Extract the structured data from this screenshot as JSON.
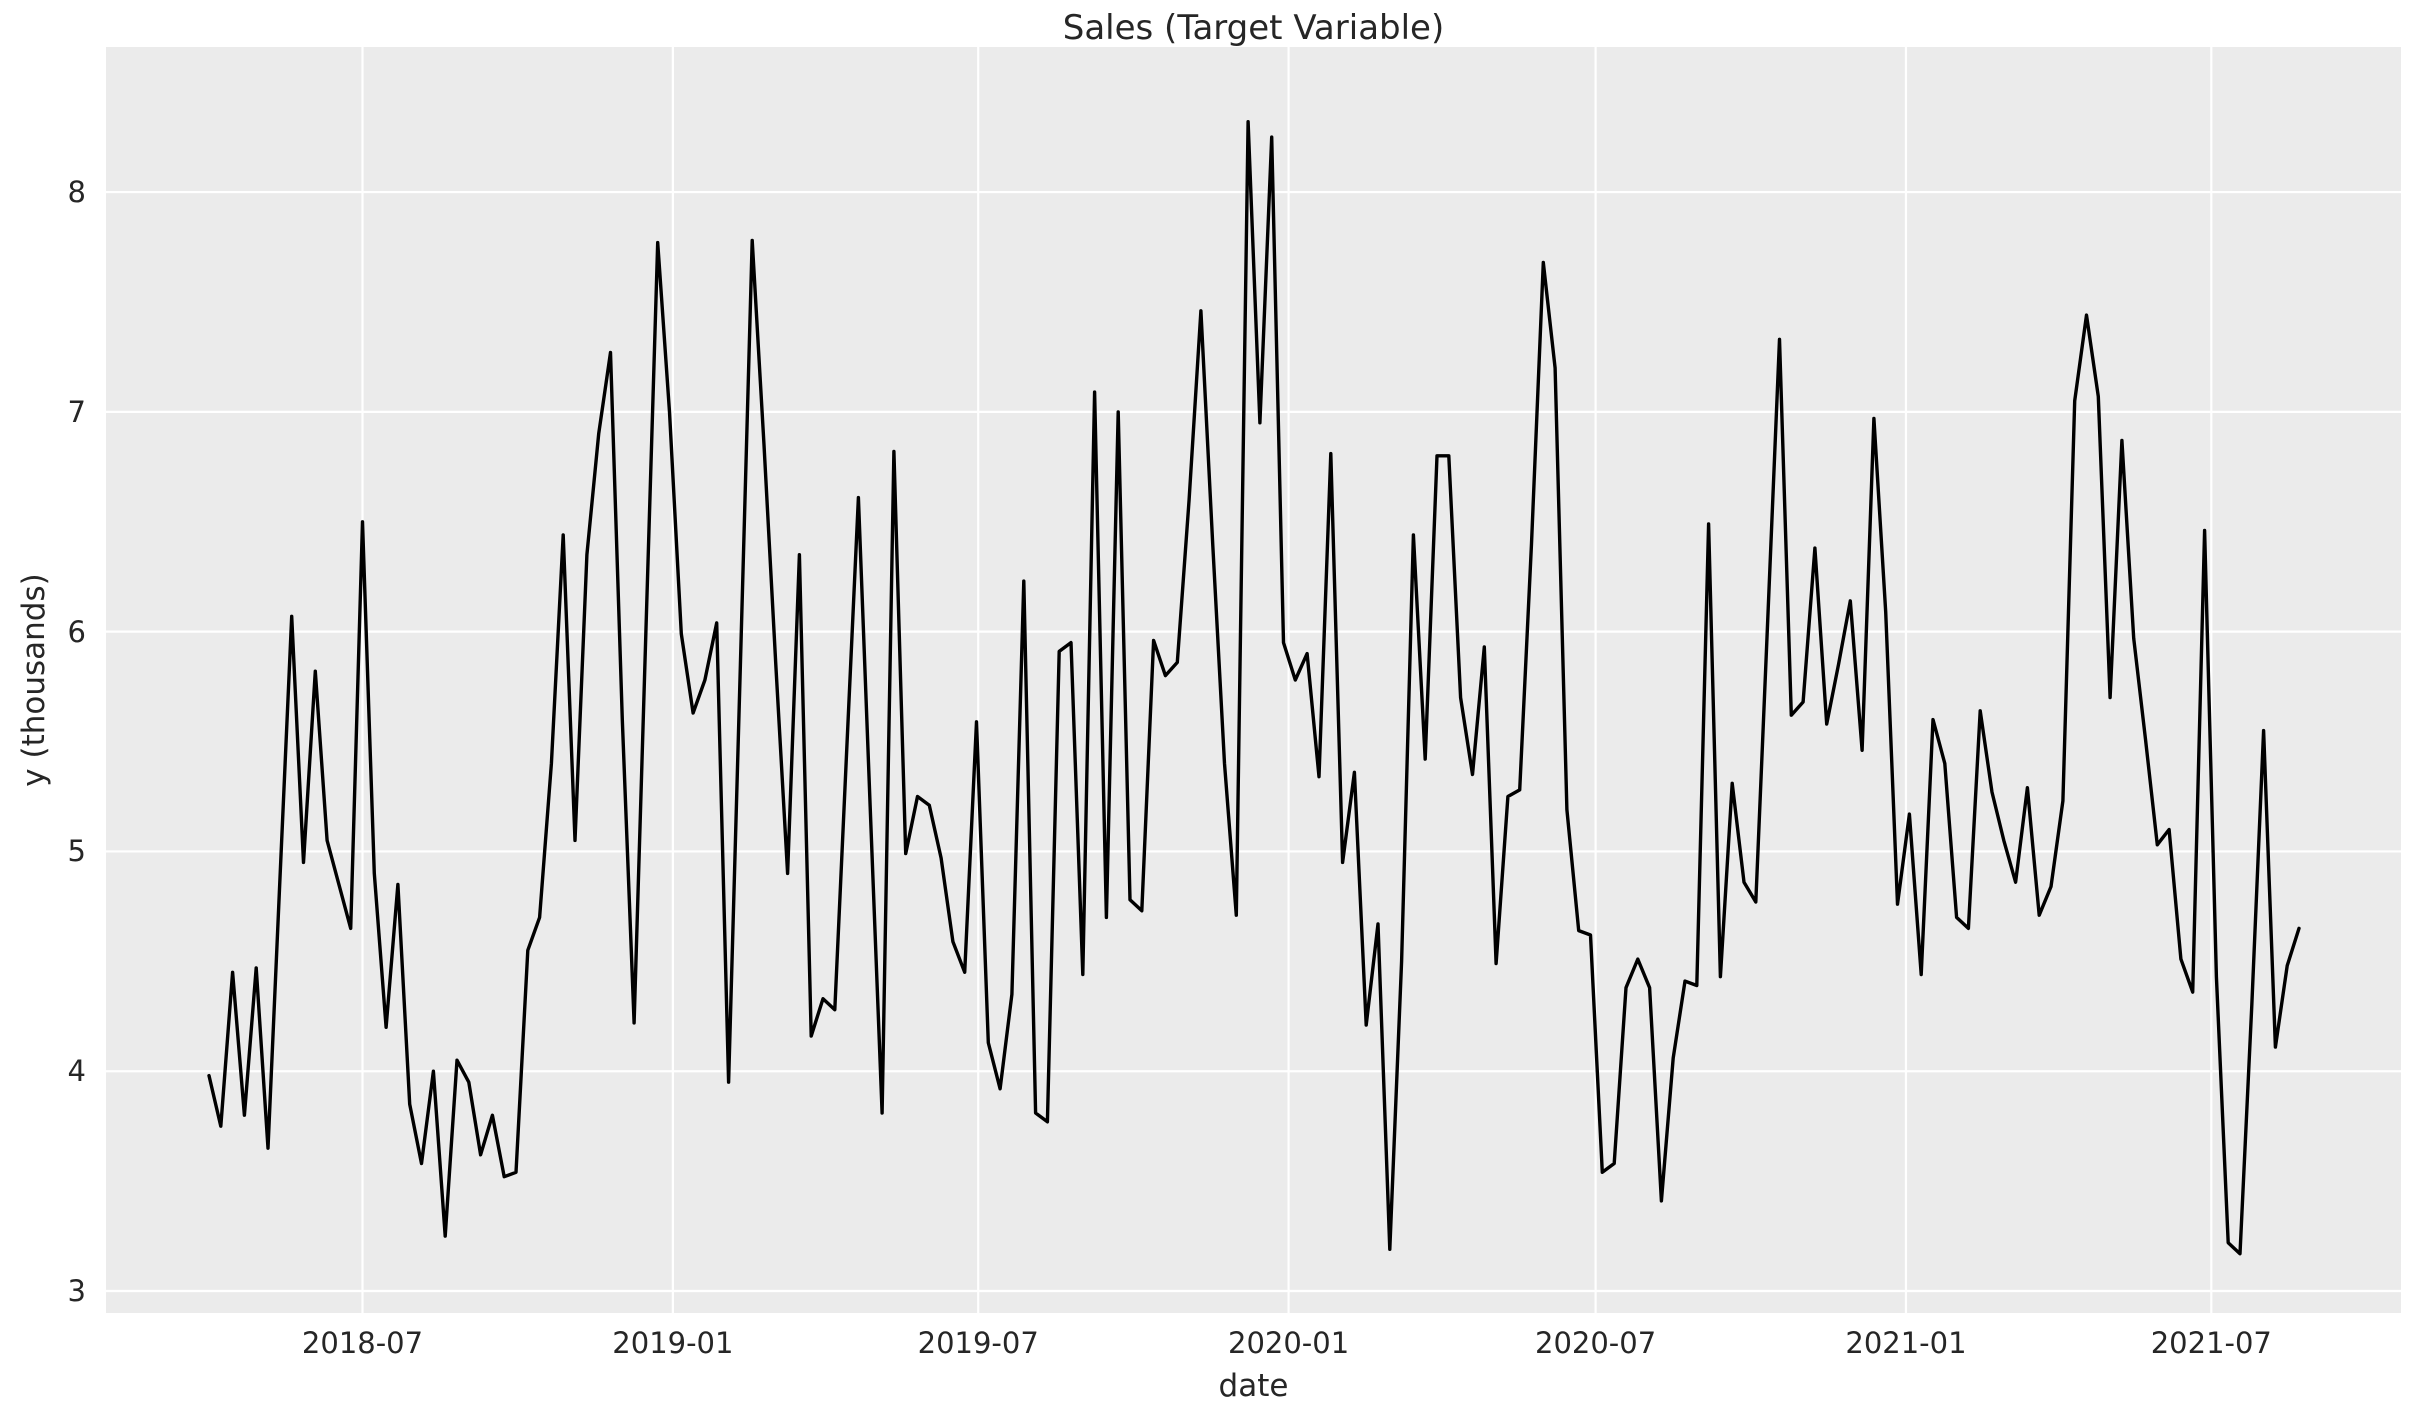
{
  "figure": {
    "title": "Sales (Target Variable)",
    "x_axis_label": "date",
    "y_axis_label": "y (thousands)"
  },
  "chart_data": {
    "type": "line",
    "title": "Sales (Target Variable)",
    "xlabel": "date",
    "ylabel": "y (thousands)",
    "series_name": "sales",
    "frequency": "weekly",
    "start_date": "2018-04-01",
    "end_date": "2021-08-22",
    "units": "thousands",
    "grid": true,
    "legend": false,
    "line_color": "#000000",
    "plot_bg_color": "#ebebeb",
    "grid_color": "#ffffff",
    "text_color": "#262626",
    "ylim": [
      2.9,
      8.66
    ],
    "y_ticks": [
      3,
      4,
      5,
      6,
      7,
      8
    ],
    "x_ticks": [
      {
        "label": "2018-07",
        "date": "2018-07-01"
      },
      {
        "label": "2019-01",
        "date": "2019-01-01"
      },
      {
        "label": "2019-07",
        "date": "2019-07-01"
      },
      {
        "label": "2020-01",
        "date": "2020-01-01"
      },
      {
        "label": "2020-07",
        "date": "2020-07-01"
      },
      {
        "label": "2021-01",
        "date": "2021-01-01"
      },
      {
        "label": "2021-07",
        "date": "2021-07-01"
      }
    ],
    "values": [
      3.98,
      3.75,
      4.45,
      3.8,
      4.47,
      3.65,
      4.86,
      6.07,
      4.95,
      5.82,
      5.05,
      4.85,
      4.65,
      6.5,
      4.9,
      4.2,
      4.85,
      3.85,
      3.58,
      4.0,
      3.25,
      4.05,
      3.95,
      3.62,
      3.8,
      3.52,
      3.54,
      4.55,
      4.7,
      5.4,
      6.44,
      5.05,
      6.35,
      6.9,
      7.27,
      5.6,
      4.22,
      6.0,
      7.77,
      7.0,
      5.99,
      5.63,
      5.78,
      6.04,
      3.95,
      5.85,
      7.78,
      6.85,
      5.85,
      4.9,
      6.35,
      4.16,
      4.33,
      4.28,
      5.45,
      6.61,
      5.2,
      3.81,
      6.82,
      4.99,
      5.25,
      5.21,
      4.97,
      4.59,
      4.45,
      5.59,
      4.13,
      3.92,
      4.35,
      6.23,
      3.81,
      3.77,
      5.91,
      5.95,
      4.44,
      7.09,
      4.7,
      7.0,
      4.78,
      4.73,
      5.96,
      5.8,
      5.86,
      6.6,
      7.46,
      6.4,
      5.4,
      4.71,
      8.32,
      6.95,
      8.25,
      5.95,
      5.78,
      5.9,
      5.34,
      6.81,
      4.95,
      5.36,
      4.21,
      4.67,
      3.19,
      4.5,
      6.44,
      5.42,
      6.8,
      6.8,
      5.7,
      5.35,
      5.93,
      4.49,
      5.25,
      5.28,
      6.4,
      7.68,
      7.2,
      5.19,
      4.64,
      4.62,
      3.54,
      3.58,
      4.38,
      4.51,
      4.38,
      3.41,
      4.06,
      4.41,
      4.39,
      6.49,
      4.43,
      5.31,
      4.86,
      4.77,
      6.05,
      7.33,
      5.62,
      5.68,
      6.38,
      5.58,
      5.85,
      6.14,
      5.46,
      6.97,
      6.09,
      4.76,
      5.17,
      4.44,
      5.6,
      5.4,
      4.7,
      4.65,
      5.64,
      5.27,
      5.05,
      4.86,
      5.29,
      4.71,
      4.84,
      5.23,
      7.05,
      7.44,
      7.07,
      5.7,
      6.87,
      5.97,
      5.51,
      5.03,
      5.1,
      4.51,
      4.36,
      6.46,
      4.43,
      3.22,
      3.17,
      4.3,
      5.55,
      4.11,
      4.48,
      4.65
    ]
  }
}
